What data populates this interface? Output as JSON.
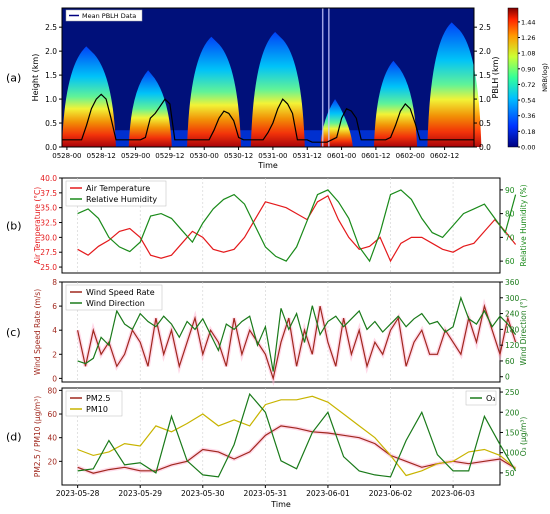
{
  "chart_data": [
    {
      "panel_label": "(a)",
      "type": "heatmap",
      "xlabel": "Time",
      "ylabel_left": "Height (km)",
      "ylabel_right": "PBLH (km)",
      "xticks": [
        "0528-00",
        "0528-12",
        "0529-00",
        "0529-12",
        "0530-00",
        "0530-12",
        "0531-00",
        "0531-12",
        "0601-00",
        "0601-12",
        "0602-00",
        "0602-12"
      ],
      "ylim": [
        0,
        2.9
      ],
      "yticks": [
        "0.0",
        "0.5",
        "1.0",
        "1.5",
        "2.0",
        "2.5"
      ],
      "colorbar": {
        "label": "NRB(log)",
        "range": [
          0,
          1.6
        ],
        "ticks": [
          "0.00",
          "0.18",
          "0.36",
          "0.54",
          "0.72",
          "0.90",
          "1.08",
          "1.26",
          "1.44"
        ]
      },
      "legend": "Mean PBLH Data",
      "pblh_series": {
        "x": [
          0,
          2,
          4,
          6,
          8,
          10,
          12,
          14,
          16,
          18,
          20,
          22,
          24,
          26,
          28,
          30,
          32,
          34,
          36,
          38,
          40,
          42,
          44,
          46,
          48,
          50,
          52,
          54,
          56,
          58,
          60,
          62,
          64,
          66,
          68,
          70,
          72,
          74,
          76,
          78,
          80,
          82,
          84,
          86,
          88,
          90,
          92,
          94,
          96,
          98,
          100,
          102,
          104,
          106,
          108,
          110,
          112,
          114,
          116,
          118,
          120,
          122,
          124,
          126,
          128,
          130,
          132,
          134,
          136,
          138,
          140,
          142,
          144,
          146,
          148,
          150,
          152,
          154,
          156,
          158,
          160,
          162,
          164,
          166,
          168
        ],
        "y": [
          0.15,
          0.15,
          0.15,
          0.15,
          0.15,
          0.45,
          0.8,
          1.0,
          1.1,
          1.0,
          0.6,
          0.15,
          0.15,
          0.15,
          0.15,
          0.15,
          0.15,
          0.2,
          0.6,
          0.7,
          0.85,
          1.0,
          0.9,
          0.15,
          0.15,
          0.15,
          0.15,
          0.15,
          0.15,
          0.15,
          0.15,
          0.35,
          0.6,
          0.75,
          0.7,
          0.55,
          0.2,
          0.15,
          0.15,
          0.15,
          0.15,
          0.15,
          0.3,
          0.5,
          0.8,
          1.0,
          0.9,
          0.7,
          0.15,
          0.15,
          0.15,
          0.1,
          0.1,
          0.1,
          0.1,
          0.15,
          0.2,
          0.6,
          0.8,
          0.75,
          0.6,
          0.15,
          0.15,
          0.15,
          0.15,
          0.15,
          0.15,
          0.2,
          0.45,
          0.75,
          0.9,
          0.8,
          0.5,
          0.15,
          0.15,
          0.15,
          0.15,
          0.15,
          0.15,
          0.15,
          0.15,
          0.15,
          0.15,
          0.15,
          0.15
        ]
      },
      "plumes": [
        {
          "x_center": 11,
          "width": 5,
          "height": 2.1
        },
        {
          "x_center": 36,
          "width": 4,
          "height": 1.6
        },
        {
          "x_center": 62,
          "width": 5,
          "height": 2.3
        },
        {
          "x_center": 88,
          "width": 5,
          "height": 2.4
        },
        {
          "x_center": 112,
          "width": 3,
          "height": 1.0
        },
        {
          "x_center": 136,
          "width": 4,
          "height": 1.8
        },
        {
          "x_center": 160,
          "width": 5,
          "height": 2.6
        }
      ]
    },
    {
      "panel_label": "(b)",
      "type": "line",
      "ylabel_left": "Air Temperature (°C)",
      "ylabel_right": "Relative Humidity (%)",
      "ylim_left": [
        24,
        40
      ],
      "ylim_right": [
        55,
        95
      ],
      "yticks_left": [
        "25.0",
        "27.5",
        "30.0",
        "32.5",
        "35.0",
        "37.5",
        "40.0"
      ],
      "yticks_right": [
        "60",
        "70",
        "80",
        "90"
      ],
      "series": [
        {
          "name": "Air Temperature",
          "color": "#e41a1c",
          "x": [
            0,
            4,
            8,
            12,
            16,
            20,
            24,
            28,
            32,
            36,
            40,
            44,
            48,
            52,
            56,
            60,
            64,
            68,
            72,
            76,
            80,
            84,
            88,
            92,
            96,
            100,
            104,
            108,
            112,
            116,
            120,
            124,
            128,
            132,
            136,
            140,
            144,
            148,
            152,
            156,
            160,
            164,
            168
          ],
          "y": [
            28,
            27,
            28.5,
            29.5,
            31,
            31.5,
            30,
            27,
            26.5,
            27,
            29,
            31,
            30,
            28,
            27.5,
            28,
            30,
            33,
            36,
            35.5,
            35,
            34,
            33,
            36,
            37,
            33,
            30,
            28,
            28.5,
            30,
            26,
            29,
            30,
            30,
            29,
            28,
            27.5,
            28.5,
            29,
            31,
            33,
            31,
            28.8
          ]
        },
        {
          "name": "Relative Humidity",
          "color": "#1a8a1a",
          "x": [
            0,
            4,
            8,
            12,
            16,
            20,
            24,
            28,
            32,
            36,
            40,
            44,
            48,
            52,
            56,
            60,
            64,
            68,
            72,
            76,
            80,
            84,
            88,
            92,
            96,
            100,
            104,
            108,
            112,
            116,
            120,
            124,
            128,
            132,
            136,
            140,
            144,
            148,
            152,
            156,
            160,
            164,
            168
          ],
          "y": [
            80,
            82,
            78,
            70,
            66,
            64,
            68,
            79,
            80,
            78,
            73,
            68,
            76,
            82,
            86,
            88,
            84,
            75,
            66,
            62,
            60,
            66,
            77,
            88,
            90,
            85,
            78,
            66,
            60,
            72,
            88,
            90,
            86,
            78,
            72,
            70,
            75,
            80,
            82,
            84,
            78,
            72,
            88
          ]
        }
      ]
    },
    {
      "panel_label": "(c)",
      "type": "line",
      "ylabel_left": "Wind Speed Rate (m/s)",
      "ylabel_right": "Wind Direction (°)",
      "ylim_left": [
        -0.3,
        8
      ],
      "ylim_right": [
        -20,
        360
      ],
      "yticks_left": [
        "0",
        "2",
        "4",
        "6",
        "8"
      ],
      "yticks_right": [
        "0",
        "60",
        "120",
        "180",
        "240",
        "300",
        "360"
      ],
      "series": [
        {
          "name": "Wind Speed Rate",
          "color": "#a0281e",
          "x": [
            0,
            3,
            6,
            9,
            12,
            15,
            18,
            21,
            24,
            27,
            30,
            33,
            36,
            39,
            42,
            45,
            48,
            51,
            54,
            57,
            60,
            63,
            66,
            69,
            72,
            75,
            78,
            81,
            84,
            87,
            90,
            93,
            96,
            99,
            102,
            105,
            108,
            111,
            114,
            117,
            120,
            123,
            126,
            129,
            132,
            135,
            138,
            141,
            144,
            147,
            150,
            153,
            156,
            159,
            162,
            165,
            168
          ],
          "y": [
            4,
            1,
            4,
            2,
            3,
            1,
            2,
            4,
            3,
            1,
            5,
            2,
            4,
            1,
            3,
            5,
            2,
            4,
            3,
            1,
            5,
            2,
            4,
            3,
            2,
            0,
            3,
            5,
            1,
            4,
            2,
            6,
            3,
            1,
            5,
            2,
            4,
            1,
            3,
            2,
            4,
            5,
            1,
            3,
            4,
            2,
            2,
            4,
            3,
            2,
            5,
            3,
            6,
            4,
            2,
            5,
            3
          ]
        },
        {
          "name": "Wind Direction",
          "color": "#1a7a1a",
          "x": [
            0,
            3,
            6,
            9,
            12,
            15,
            18,
            21,
            24,
            27,
            30,
            33,
            36,
            39,
            42,
            45,
            48,
            51,
            54,
            57,
            60,
            63,
            66,
            69,
            72,
            75,
            78,
            81,
            84,
            87,
            90,
            93,
            96,
            99,
            102,
            105,
            108,
            111,
            114,
            117,
            120,
            123,
            126,
            129,
            132,
            135,
            138,
            141,
            144,
            147,
            150,
            153,
            156,
            159,
            162,
            165,
            168
          ],
          "y": [
            60,
            50,
            70,
            150,
            120,
            250,
            200,
            180,
            240,
            210,
            190,
            230,
            200,
            150,
            210,
            180,
            220,
            160,
            100,
            200,
            180,
            210,
            230,
            120,
            190,
            20,
            260,
            180,
            240,
            130,
            270,
            160,
            210,
            230,
            190,
            220,
            250,
            180,
            210,
            170,
            200,
            230,
            190,
            220,
            240,
            200,
            210,
            170,
            190,
            300,
            220,
            200,
            250,
            190,
            230,
            200,
            160
          ]
        }
      ]
    },
    {
      "panel_label": "(d)",
      "type": "line",
      "xlabel": "Time",
      "ylabel_left": "PM2.5 / PM10 (μg/m³)",
      "ylabel_right": "O₃ (μg/m³)",
      "ylim_left": [
        0,
        82
      ],
      "ylim_right": [
        20,
        260
      ],
      "yticks_left": [
        "20",
        "40",
        "60",
        "80"
      ],
      "yticks_right": [
        "50",
        "100",
        "150",
        "200",
        "250"
      ],
      "xticks": [
        "2023-05-28",
        "2023-05-29",
        "2023-05-30",
        "2023-05-31",
        "2023-06-01",
        "2023-06-02",
        "2023-06-03"
      ],
      "series": [
        {
          "name": "PM2.5",
          "color": "#a0281e",
          "x": [
            0,
            6,
            12,
            18,
            24,
            30,
            36,
            42,
            48,
            54,
            60,
            66,
            72,
            78,
            84,
            90,
            96,
            102,
            108,
            114,
            120,
            126,
            132,
            138,
            144,
            150,
            156,
            162,
            168
          ],
          "y": [
            15,
            10,
            13,
            15,
            12,
            12,
            17,
            20,
            30,
            28,
            22,
            28,
            42,
            50,
            48,
            45,
            44,
            42,
            40,
            35,
            25,
            20,
            15,
            18,
            20,
            18,
            20,
            22,
            14
          ]
        },
        {
          "name": "PM10",
          "color": "#c8b400",
          "x": [
            0,
            6,
            12,
            18,
            24,
            30,
            36,
            42,
            48,
            54,
            60,
            66,
            72,
            78,
            84,
            90,
            96,
            102,
            108,
            114,
            120,
            126,
            132,
            138,
            144,
            150,
            156,
            162,
            168
          ],
          "y": [
            30,
            25,
            28,
            35,
            33,
            50,
            45,
            52,
            60,
            50,
            55,
            50,
            68,
            72,
            72,
            75,
            70,
            60,
            50,
            40,
            25,
            8,
            12,
            18,
            20,
            28,
            30,
            25,
            14
          ]
        },
        {
          "name": "O₃",
          "color": "#1a7a1a",
          "axis": "right",
          "x": [
            0,
            6,
            12,
            18,
            24,
            30,
            36,
            42,
            48,
            54,
            60,
            66,
            72,
            78,
            84,
            90,
            96,
            102,
            108,
            114,
            120,
            126,
            132,
            138,
            144,
            150,
            156,
            162,
            168
          ],
          "y": [
            55,
            60,
            130,
            70,
            75,
            50,
            190,
            80,
            45,
            40,
            120,
            245,
            200,
            80,
            60,
            150,
            200,
            90,
            55,
            45,
            40,
            130,
            200,
            95,
            55,
            55,
            190,
            120,
            55
          ]
        }
      ]
    }
  ]
}
